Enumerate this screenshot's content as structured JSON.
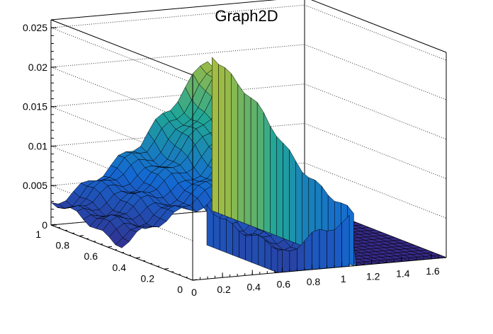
{
  "chart_data": {
    "type": "surface",
    "title": "Graph2D",
    "colors": {
      "palette_low": "#3b3ba0",
      "palette_mid": "#23a79a",
      "palette_high": "#f9ea2c",
      "frame": "#000000"
    },
    "grid": "dotted",
    "x_axis": {
      "range": [
        0,
        1.7
      ],
      "ticks": [
        0,
        0.2,
        0.4,
        0.6,
        0.8,
        1,
        1.2,
        1.4,
        1.6
      ],
      "tick_labels": [
        "0",
        "0.2",
        "0.4",
        "0.6",
        "0.8",
        "1",
        "1.2",
        "1.4",
        "1.6"
      ]
    },
    "y_axis": {
      "range": [
        0,
        1
      ],
      "ticks": [
        0,
        0.2,
        0.4,
        0.6,
        0.8,
        1
      ],
      "tick_labels": [
        "0",
        "0.2",
        "0.4",
        "0.6",
        "0.8",
        "1"
      ]
    },
    "z_axis": {
      "range": [
        0,
        0.026
      ],
      "ticks": [
        0,
        0.005,
        0.01,
        0.015,
        0.02,
        0.025
      ],
      "tick_labels": [
        "0",
        "0.005",
        "0.01",
        "0.015",
        "0.02",
        "0.025"
      ]
    },
    "surface": {
      "x_cutoff": 1.08,
      "missing_region": {
        "x_max": 0.57,
        "y_max": 0.5
      },
      "profile_along_x": [
        {
          "x": 0.0,
          "z": 0.0025
        },
        {
          "x": 0.6,
          "z": 0.009
        },
        {
          "x": 0.8,
          "z": 0.013
        },
        {
          "x": 1.0,
          "z": 0.018
        },
        {
          "x": 1.08,
          "z": 0.02
        }
      ],
      "profile_along_y": [
        {
          "y": 0.0,
          "z_factor": 0.35
        },
        {
          "y": 0.5,
          "z_factor": 0.7
        },
        {
          "y": 1.0,
          "z_factor": 1.2
        }
      ],
      "peak": {
        "x": 1.0,
        "y": 1.0,
        "z": 0.025
      }
    }
  }
}
